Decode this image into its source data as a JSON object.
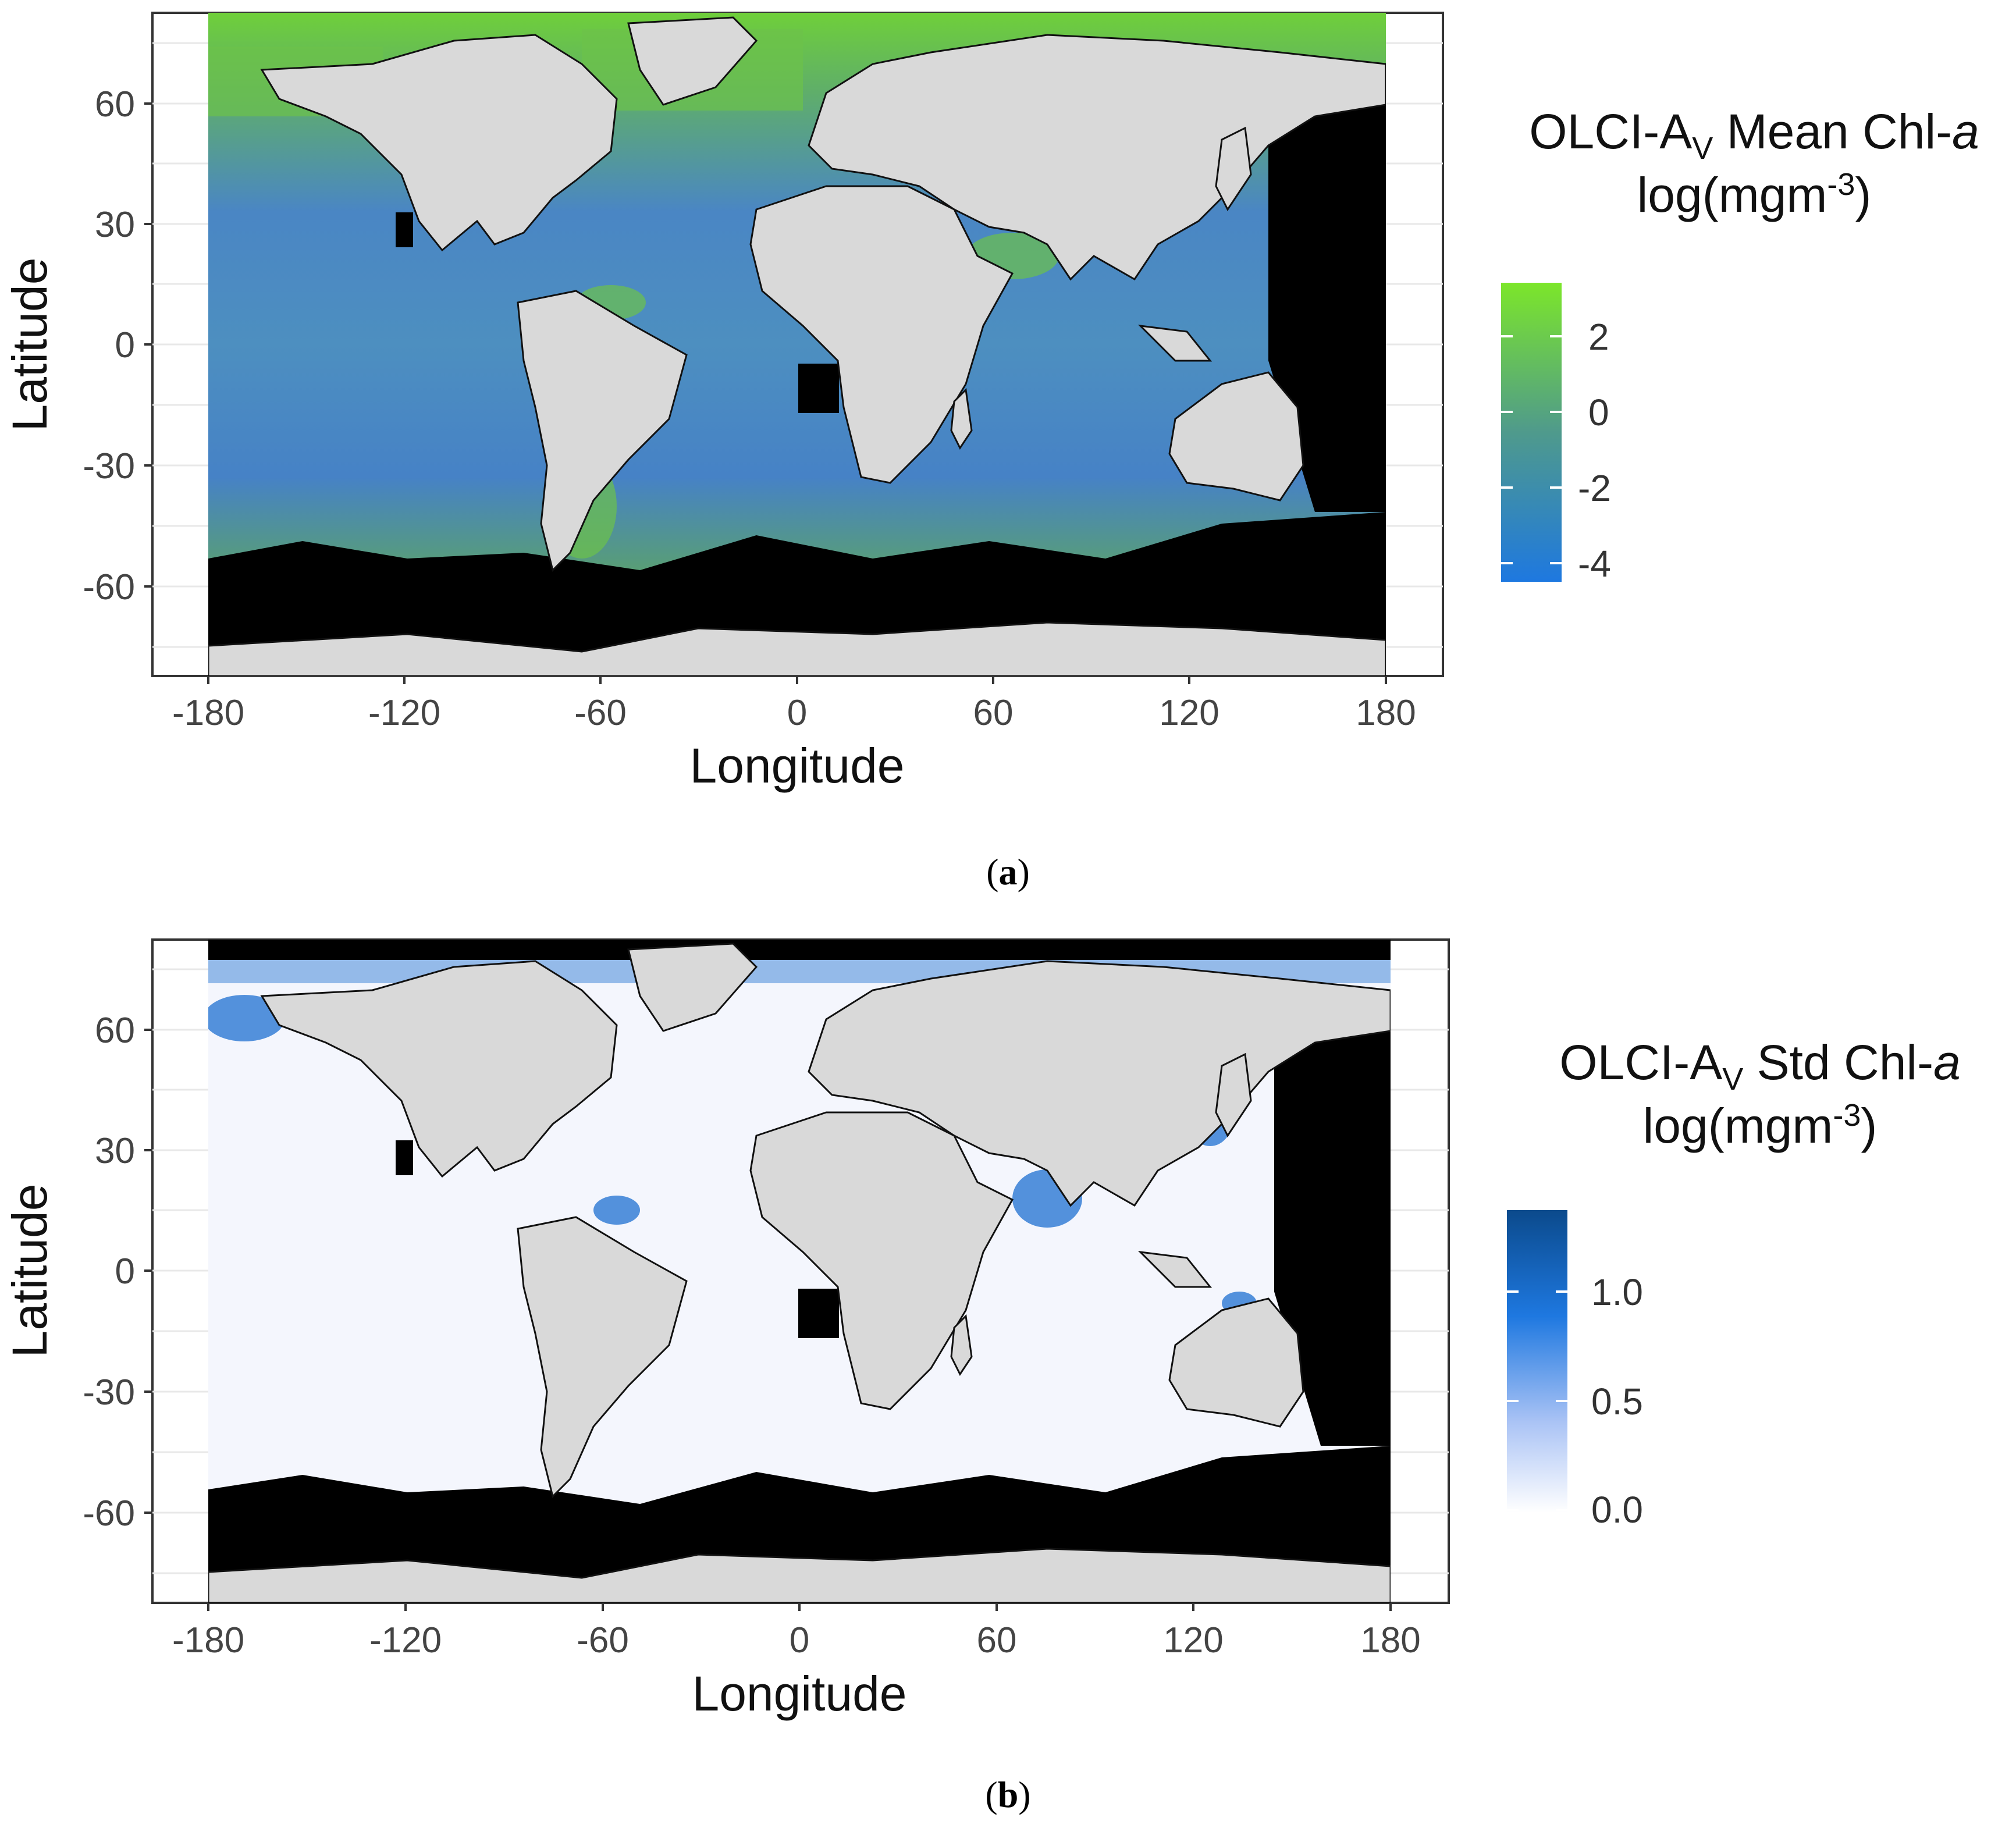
{
  "panels": [
    {
      "id": "a",
      "caption": "a",
      "xlabel": "Longitude",
      "ylabel": "Latitude",
      "xticks": [
        "-180",
        "-120",
        "-60",
        "0",
        "60",
        "120",
        "180"
      ],
      "yticks": [
        "60",
        "30",
        "0",
        "-30",
        "-60"
      ],
      "legend": {
        "title_main": "OLCI-A",
        "title_sub": "V",
        "title_rest": " Mean Chl-",
        "title_italic": "a",
        "unit_main": "log(mgm",
        "unit_sup": "-3",
        "unit_end": ")",
        "ticks": [
          "2",
          "0",
          "-2",
          "-4"
        ],
        "colors": [
          "#7ce62a",
          "#1e78e0"
        ]
      }
    },
    {
      "id": "b",
      "caption": "b",
      "xlabel": "Longitude",
      "ylabel": "Latitude",
      "xticks": [
        "-180",
        "-120",
        "-60",
        "0",
        "60",
        "120",
        "180"
      ],
      "yticks": [
        "60",
        "30",
        "0",
        "-30",
        "-60"
      ],
      "legend": {
        "title_main": "OLCI-A",
        "title_sub": "V",
        "title_rest": " Std Chl-",
        "title_italic": "a",
        "unit_main": "log(mgm",
        "unit_sup": "-3",
        "unit_end": ")",
        "ticks": [
          "1.0",
          "0.5",
          "0.0"
        ],
        "colors": [
          "#0b4a8c",
          "#1e78e0",
          "#ffffff"
        ]
      }
    }
  ],
  "chart_data": [
    {
      "type": "heatmap",
      "title": "",
      "xlabel": "Longitude",
      "ylabel": "Latitude",
      "xlim": [
        -180,
        180
      ],
      "ylim": [
        -80,
        80
      ],
      "legend_title": "OLCI-AV Mean Chl-a log(mgm-3)",
      "colorbar_ticks": [
        2,
        0,
        -2,
        -4
      ],
      "colorbar_range": [
        -4.5,
        3
      ],
      "legend_position": "right",
      "grid": true,
      "notes_colors": {
        "land": "#d9d9d9",
        "no_data": "#000000"
      }
    },
    {
      "type": "heatmap",
      "title": "",
      "xlabel": "Longitude",
      "ylabel": "Latitude",
      "xlim": [
        -180,
        180
      ],
      "ylim": [
        -80,
        80
      ],
      "legend_title": "OLCI-AV Std Chl-a log(mgm-3)",
      "colorbar_ticks": [
        1.0,
        0.5,
        0.0
      ],
      "colorbar_range": [
        0.0,
        1.35
      ],
      "legend_position": "right",
      "grid": true,
      "notes_colors": {
        "land": "#d9d9d9",
        "no_data": "#000000"
      }
    }
  ]
}
